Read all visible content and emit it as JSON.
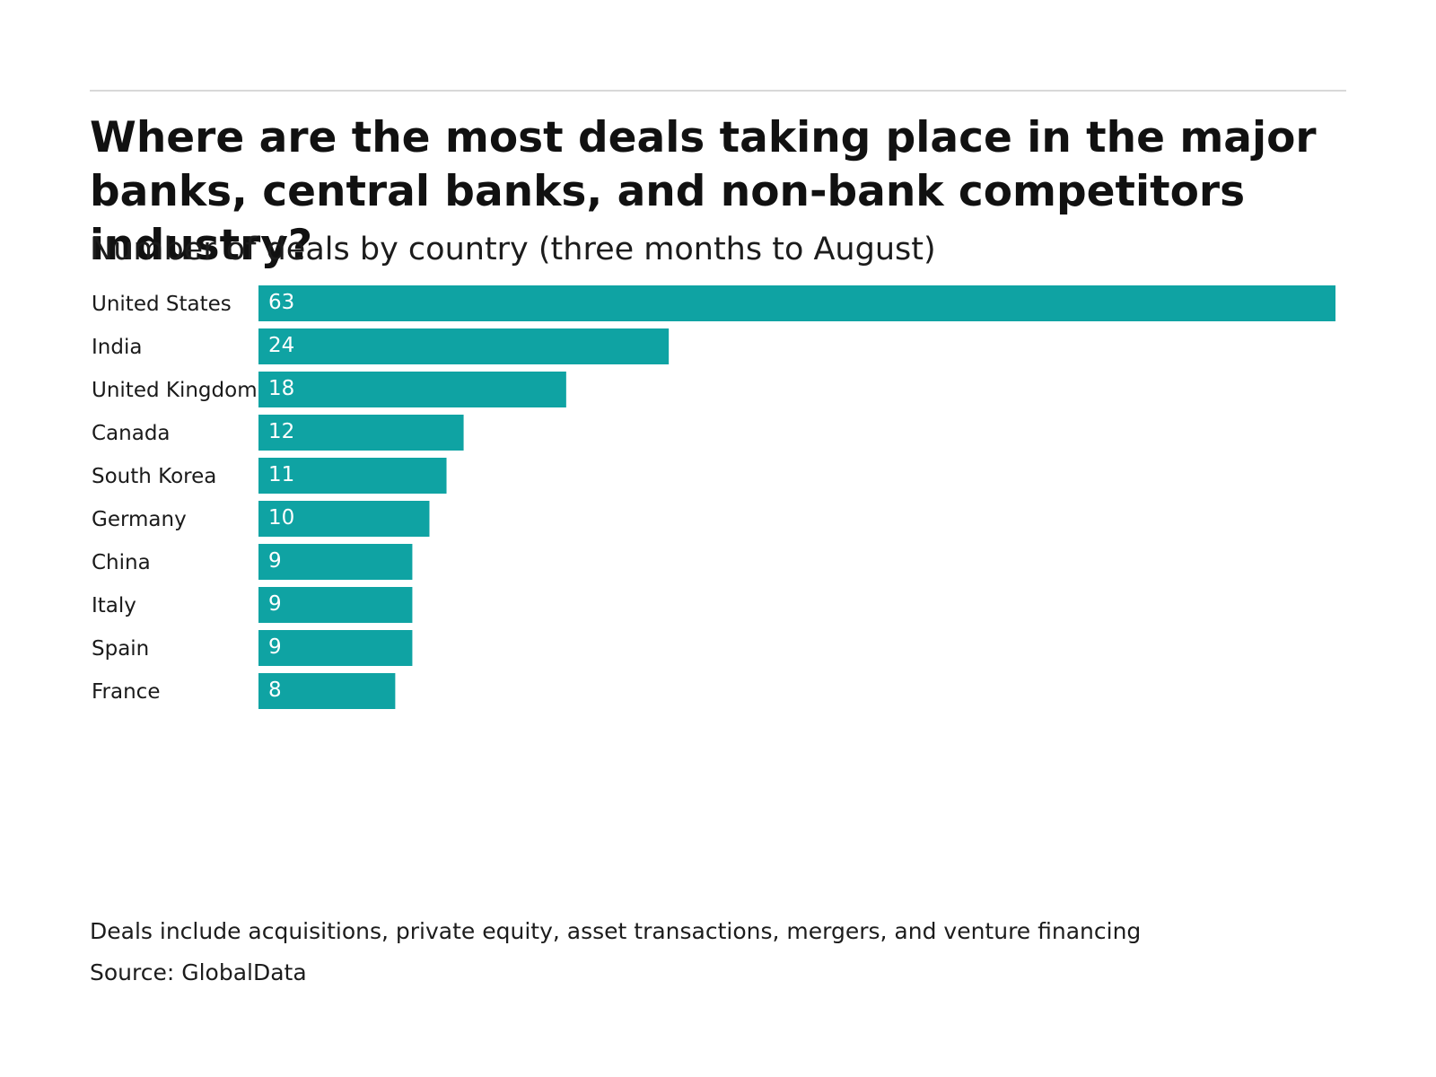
{
  "title": "Where are the most deals taking place in the major banks, central banks, and non-bank competitors industry?",
  "subtitle": "Number of deals by country (three months to August)",
  "footnote": "Deals include acquisitions, private equity, asset transactions, mergers, and venture financing",
  "source": "Source: GlobalData",
  "colors": {
    "bar": "#0fa3a3",
    "rule": "#d8d8d8"
  },
  "chart_data": {
    "type": "bar",
    "orientation": "horizontal",
    "categories": [
      "United States",
      "India",
      "United Kingdom",
      "Canada",
      "South Korea",
      "Germany",
      "China",
      "Italy",
      "Spain",
      "France"
    ],
    "values": [
      63,
      24,
      18,
      12,
      11,
      10,
      9,
      9,
      9,
      8
    ],
    "title": "Where are the most deals taking place in the major banks, central banks, and non-bank competitors industry?",
    "subtitle": "Number of deals by country (three months to August)",
    "xlabel": "",
    "ylabel": "",
    "xlim": [
      0,
      63
    ],
    "grid": false,
    "data_labels": true
  }
}
